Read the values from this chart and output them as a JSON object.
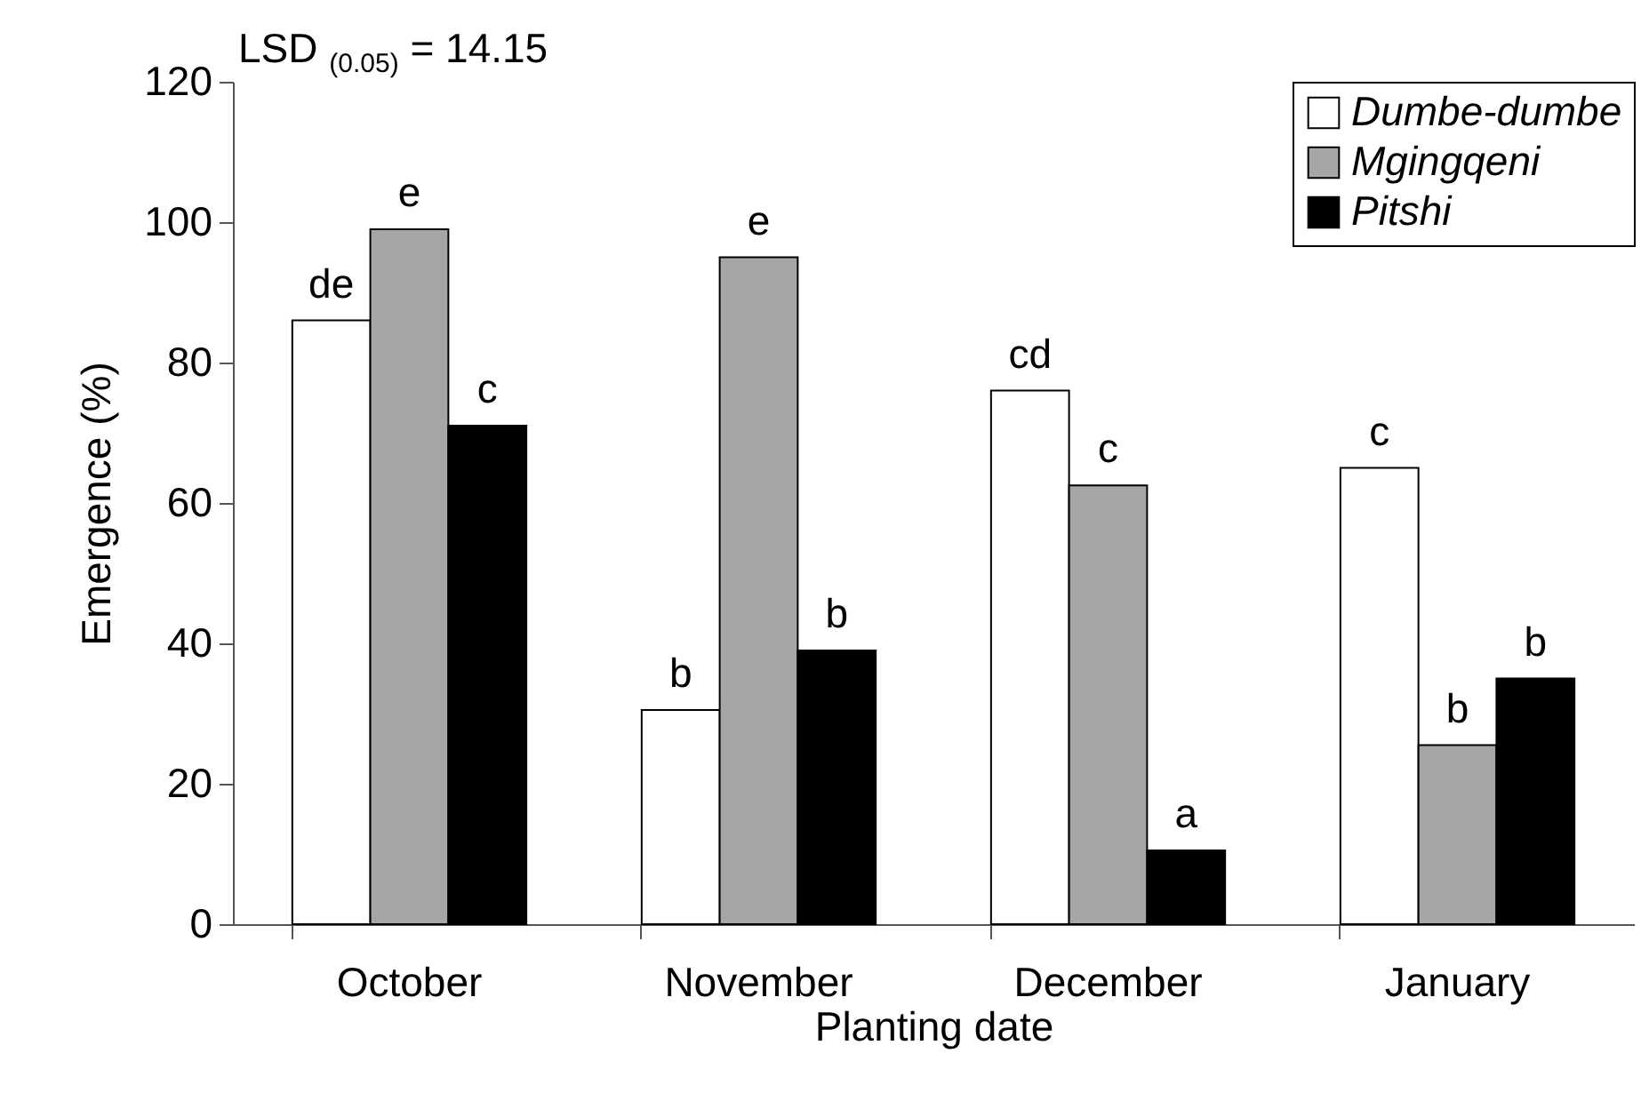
{
  "chart_data": {
    "type": "bar",
    "xlabel": "Planting date",
    "ylabel": "Emergence (%)",
    "categories": [
      "October",
      "November",
      "December",
      "January"
    ],
    "series": [
      {
        "name": "Dumbe-dumbe",
        "color": "#ffffff",
        "values": [
          86,
          30.5,
          76,
          65
        ],
        "value_labels": [
          "de",
          "b",
          "cd",
          "c"
        ]
      },
      {
        "name": "Mgingqeni",
        "color": "#a6a6a6",
        "values": [
          99,
          95,
          62.5,
          25.5
        ],
        "value_labels": [
          "e",
          "e",
          "c",
          "b"
        ]
      },
      {
        "name": "Pitshi",
        "color": "#000000",
        "values": [
          71,
          39,
          10.5,
          35
        ],
        "value_labels": [
          "c",
          "b",
          "a",
          "b"
        ]
      }
    ],
    "ylim": [
      0,
      120
    ],
    "yticks": [
      0,
      20,
      40,
      60,
      80,
      100,
      120
    ],
    "grid": false,
    "legend": "top right",
    "annotations": [
      "LSD $_{(0.05)}$ = 14.15"
    ]
  }
}
